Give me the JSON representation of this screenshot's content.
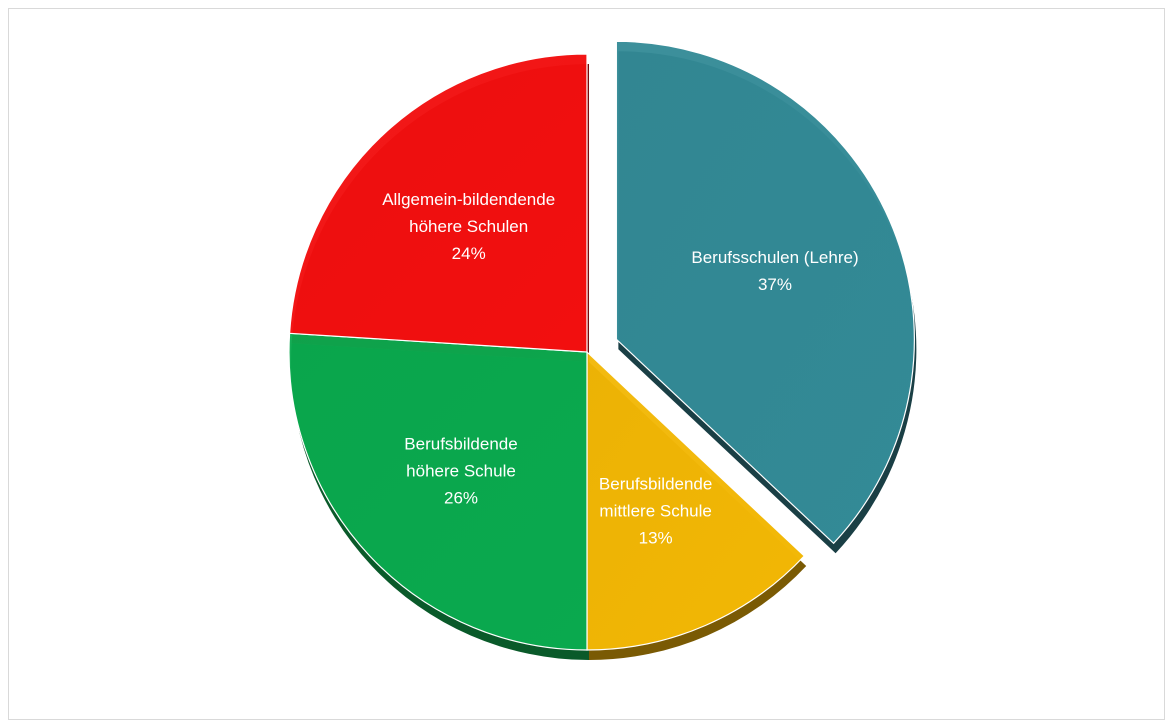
{
  "chart_data": {
    "type": "pie",
    "title": "",
    "exploded": [
      "Berufsschulen (Lehre)"
    ],
    "slices": [
      {
        "label_lines": [
          "Berufsschulen (Lehre)"
        ],
        "pct_label": "37%",
        "value": 37,
        "color": "#338a96",
        "side_color": "#1a3f45"
      },
      {
        "label_lines": [
          "Berufsbildende",
          "mittlere Schule"
        ],
        "pct_label": "13%",
        "value": 13,
        "color": "#f2b705",
        "side_color": "#7a5a04"
      },
      {
        "label_lines": [
          "Berufsbildende",
          "höhere Schule"
        ],
        "pct_label": "26%",
        "value": 26,
        "color": "#0aa94e",
        "side_color": "#0a5a2a"
      },
      {
        "label_lines": [
          "Allgemein-bildendende",
          "höhere Schulen"
        ],
        "pct_label": "24%",
        "value": 24,
        "color": "#f20f0f",
        "side_color": "#7a0a0a"
      }
    ]
  }
}
